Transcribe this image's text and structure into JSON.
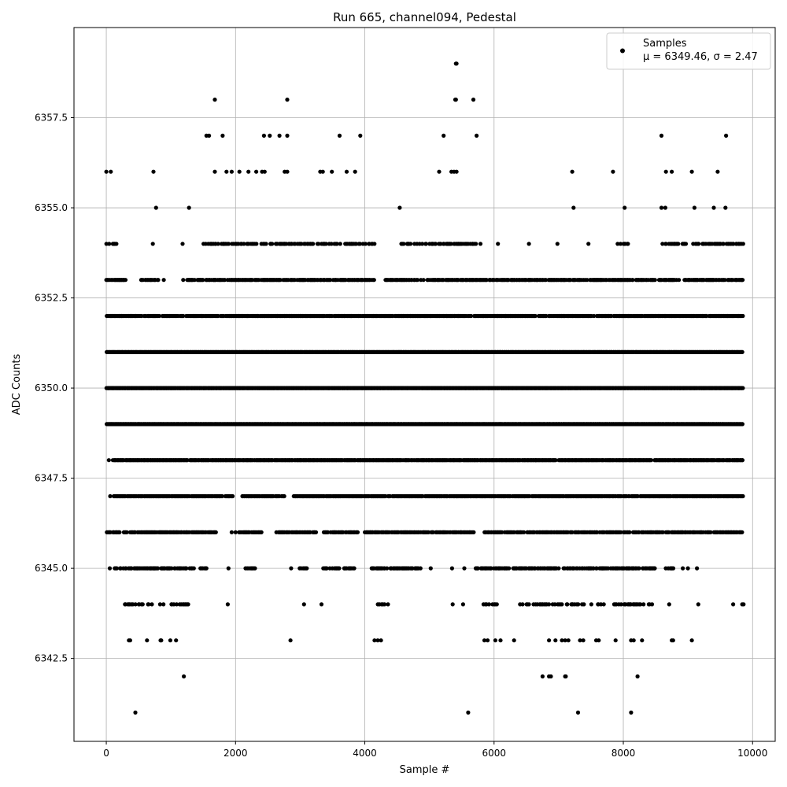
{
  "chart_data": {
    "type": "scatter",
    "title": "Run 665, channel094, Pedestal",
    "xlabel": "Sample #",
    "ylabel": "ADC Counts",
    "xlim": [
      -500,
      10350
    ],
    "ylim": [
      6340.2,
      6360.0
    ],
    "xticks": [
      0,
      2000,
      4000,
      6000,
      8000,
      10000
    ],
    "xtick_labels": [
      "0",
      "2000",
      "4000",
      "6000",
      "8000",
      "10000"
    ],
    "yticks": [
      6342.5,
      6345.0,
      6347.5,
      6350.0,
      6352.5,
      6355.0,
      6357.5
    ],
    "ytick_labels": [
      "6342.5",
      "6345.0",
      "6347.5",
      "6350.0",
      "6352.5",
      "6355.0",
      "6357.5"
    ],
    "grid": true,
    "legend": {
      "placement": "top-right",
      "entries": [
        {
          "label": "Samples",
          "stat": "μ = 6349.46, σ = 2.47"
        }
      ]
    },
    "series": [
      {
        "name": "Samples",
        "color": "#000000",
        "x_range": [
          0,
          9850
        ],
        "points": [
          [
            450,
            6341
          ],
          [
            1200,
            6342
          ],
          [
            5600,
            6341
          ],
          [
            7300,
            6341
          ],
          [
            8120,
            6341
          ],
          [
            6750,
            6342
          ],
          [
            6850,
            6342
          ],
          [
            6880,
            6342
          ],
          [
            7100,
            6342
          ],
          [
            7110,
            6342
          ],
          [
            8220,
            6342
          ],
          [
            350,
            6343
          ],
          [
            370,
            6343
          ],
          [
            630,
            6343
          ],
          [
            840,
            6343
          ],
          [
            850,
            6343
          ],
          [
            990,
            6343
          ],
          [
            1080,
            6343
          ],
          [
            2850,
            6343
          ],
          [
            4150,
            6343
          ],
          [
            4200,
            6343
          ],
          [
            4250,
            6343
          ],
          [
            5850,
            6343
          ],
          [
            5900,
            6343
          ],
          [
            6020,
            6343
          ],
          [
            6100,
            6343
          ],
          [
            6310,
            6343
          ],
          [
            6850,
            6343
          ],
          [
            6950,
            6343
          ],
          [
            7050,
            6343
          ],
          [
            7100,
            6343
          ],
          [
            7150,
            6343
          ],
          [
            7330,
            6343
          ],
          [
            7380,
            6343
          ],
          [
            7580,
            6343
          ],
          [
            7620,
            6343
          ],
          [
            7880,
            6343
          ],
          [
            8120,
            6343
          ],
          [
            8160,
            6343
          ],
          [
            8290,
            6343
          ],
          [
            8750,
            6343
          ],
          [
            8770,
            6343
          ],
          [
            9060,
            6343
          ],
          [
            5410,
            6359
          ],
          [
            5420,
            6359
          ],
          [
            1680,
            6358
          ],
          [
            2800,
            6358
          ],
          [
            5400,
            6358
          ],
          [
            5410,
            6358
          ],
          [
            5680,
            6358
          ],
          [
            1550,
            6357
          ],
          [
            1590,
            6357
          ],
          [
            1800,
            6357
          ],
          [
            2440,
            6357
          ],
          [
            2530,
            6357
          ],
          [
            2680,
            6357
          ],
          [
            2800,
            6357
          ],
          [
            3610,
            6357
          ],
          [
            3930,
            6357
          ],
          [
            5220,
            6357
          ],
          [
            5730,
            6357
          ],
          [
            8590,
            6357
          ],
          [
            9590,
            6357
          ],
          [
            0,
            6356
          ],
          [
            70,
            6356
          ],
          [
            730,
            6356
          ],
          [
            1680,
            6356
          ],
          [
            1860,
            6356
          ],
          [
            1940,
            6356
          ],
          [
            2060,
            6356
          ],
          [
            2200,
            6356
          ],
          [
            2320,
            6356
          ],
          [
            2410,
            6356
          ],
          [
            2450,
            6356
          ],
          [
            2760,
            6356
          ],
          [
            2800,
            6356
          ],
          [
            3310,
            6356
          ],
          [
            3350,
            6356
          ],
          [
            3490,
            6356
          ],
          [
            3720,
            6356
          ],
          [
            3850,
            6356
          ],
          [
            5150,
            6356
          ],
          [
            5340,
            6356
          ],
          [
            5380,
            6356
          ],
          [
            5420,
            6356
          ],
          [
            7210,
            6356
          ],
          [
            7840,
            6356
          ],
          [
            8660,
            6356
          ],
          [
            8750,
            6356
          ],
          [
            9060,
            6356
          ],
          [
            9460,
            6356
          ],
          [
            770,
            6355
          ],
          [
            1280,
            6355
          ],
          [
            4540,
            6355
          ],
          [
            7230,
            6355
          ],
          [
            8020,
            6355
          ],
          [
            8590,
            6355
          ],
          [
            8650,
            6355
          ],
          [
            9100,
            6355
          ],
          [
            9400,
            6355
          ],
          [
            9580,
            6355
          ],
          [
            720,
            6354
          ],
          [
            1180,
            6354
          ],
          [
            6060,
            6354
          ],
          [
            6540,
            6354
          ],
          [
            6980,
            6354
          ],
          [
            7460,
            6354
          ],
          [
            890,
            6353
          ],
          [
            1190,
            6353
          ],
          [
            40,
            6348
          ],
          [
            6640,
            6348
          ],
          [
            60,
            6347
          ],
          [
            1940,
            6346
          ],
          [
            2000,
            6346
          ],
          [
            3060,
            6344
          ],
          [
            3330,
            6344
          ],
          [
            1880,
            6344
          ],
          [
            1890,
            6345
          ],
          [
            2860,
            6345
          ],
          [
            5020,
            6345
          ],
          [
            5350,
            6345
          ],
          [
            5540,
            6345
          ],
          [
            5360,
            6344
          ],
          [
            5520,
            6344
          ],
          [
            8710,
            6344
          ],
          [
            9160,
            6344
          ],
          [
            9700,
            6344
          ],
          [
            9840,
            6344
          ],
          [
            9860,
            6344
          ],
          [
            9000,
            6345
          ],
          [
            9140,
            6345
          ],
          [
            8920,
            6345
          ],
          [
            9490,
            6346
          ]
        ],
        "dense_levels": [
          {
            "y": 6354,
            "x_ranges": [
              [
                0,
                160
              ],
              [
                1500,
                4150
              ],
              [
                4550,
                5800
              ],
              [
                7900,
                8100
              ],
              [
                8550,
                9850
              ]
            ],
            "density": 0.5
          },
          {
            "y": 6353,
            "x_ranges": [
              [
                0,
                300
              ],
              [
                500,
                800
              ],
              [
                1250,
                4150
              ],
              [
                4300,
                9850
              ]
            ],
            "density": 0.7
          },
          {
            "y": 6352,
            "x_ranges": [
              [
                0,
                9850
              ]
            ],
            "density": 0.85
          },
          {
            "y": 6351,
            "x_ranges": [
              [
                0,
                9850
              ]
            ],
            "density": 1.0
          },
          {
            "y": 6350,
            "x_ranges": [
              [
                0,
                9850
              ]
            ],
            "density": 1.0
          },
          {
            "y": 6349,
            "x_ranges": [
              [
                0,
                9850
              ]
            ],
            "density": 1.0
          },
          {
            "y": 6348,
            "x_ranges": [
              [
                100,
                9850
              ]
            ],
            "density": 0.95
          },
          {
            "y": 6347,
            "x_ranges": [
              [
                100,
                1950
              ],
              [
                2100,
                2750
              ],
              [
                2900,
                9850
              ]
            ],
            "density": 0.85
          },
          {
            "y": 6346,
            "x_ranges": [
              [
                0,
                1700
              ],
              [
                2050,
                2400
              ],
              [
                2600,
                3250
              ],
              [
                3350,
                3900
              ],
              [
                4000,
                5700
              ],
              [
                5850,
                9850
              ]
            ],
            "density": 0.75
          },
          {
            "y": 6345,
            "x_ranges": [
              [
                50,
                1350
              ],
              [
                1450,
                1550
              ],
              [
                2150,
                2300
              ],
              [
                2950,
                3100
              ],
              [
                3350,
                3850
              ],
              [
                4100,
                4900
              ],
              [
                5700,
                8500
              ],
              [
                8650,
                8800
              ]
            ],
            "density": 0.6
          },
          {
            "y": 6344,
            "x_ranges": [
              [
                280,
                700
              ],
              [
                820,
                900
              ],
              [
                1000,
                1300
              ],
              [
                4200,
                4400
              ],
              [
                5830,
                6050
              ],
              [
                6400,
                7700
              ],
              [
                7850,
                8450
              ]
            ],
            "density": 0.4
          }
        ]
      }
    ]
  }
}
